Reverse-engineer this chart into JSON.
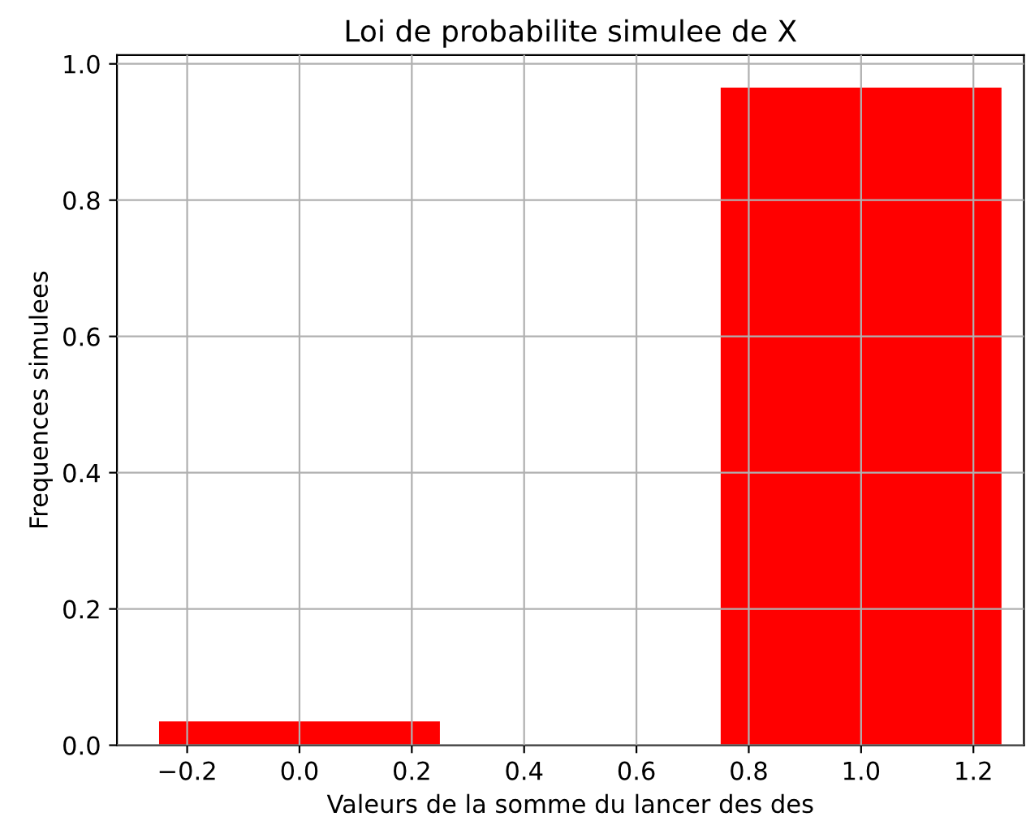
{
  "chart_data": {
    "type": "bar",
    "title": "Loi de probabilite simulee de X",
    "xlabel": "Valeurs de la somme du lancer des des",
    "ylabel": "Frequences simulees",
    "x": [
      0,
      1
    ],
    "series": [
      {
        "color": "#ff0000",
        "values": [
          0.035,
          0.965
        ]
      }
    ],
    "xlim": [
      -0.325,
      1.29
    ],
    "xticks": [
      {
        "value": -0.2,
        "label": "−0.2"
      },
      {
        "value": 0,
        "label": "0.0"
      },
      0.2,
      0.4,
      0.6,
      0.8,
      {
        "value": 1,
        "label": "1.0"
      },
      1.2
    ],
    "ylim": [
      0,
      1.013
    ],
    "yticks": [
      {
        "value": 0,
        "label": "0.0"
      },
      0.2,
      0.4,
      0.6,
      0.8,
      {
        "value": 1,
        "label": "1.0"
      }
    ],
    "grid": true
  }
}
